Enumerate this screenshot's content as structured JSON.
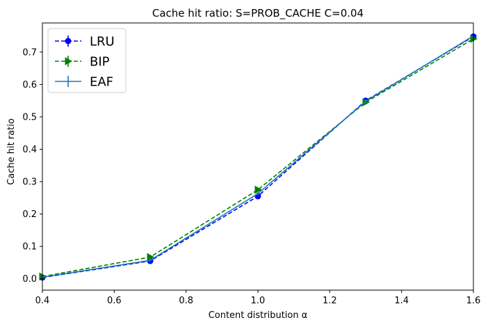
{
  "chart_data": {
    "type": "line",
    "title": "Cache hit ratio: S=PROB_CACHE C=0.04",
    "xlabel": "Content distribution α",
    "ylabel": "Cache hit ratio",
    "xlim": [
      0.4,
      1.6
    ],
    "ylim": [
      -0.035,
      0.79
    ],
    "x": [
      0.4,
      0.7,
      1.0,
      1.3,
      1.6
    ],
    "xticks": [
      0.4,
      0.6,
      0.8,
      1.0,
      1.2,
      1.4,
      1.6
    ],
    "xtick_labels": [
      "0.4",
      "0.6",
      "0.8",
      "1.0",
      "1.2",
      "1.4",
      "1.6"
    ],
    "yticks": [
      0.0,
      0.1,
      0.2,
      0.3,
      0.4,
      0.5,
      0.6,
      0.7
    ],
    "ytick_labels": [
      "0.0",
      "0.1",
      "0.2",
      "0.3",
      "0.4",
      "0.5",
      "0.6",
      "0.7"
    ],
    "grid": false,
    "legend_position": "top-left",
    "series": [
      {
        "name": "LRU",
        "values": [
          0.004,
          0.055,
          0.255,
          0.55,
          0.748
        ],
        "color": "#0000ff",
        "linestyle": "dashed",
        "marker": "circle"
      },
      {
        "name": "BIP",
        "values": [
          0.007,
          0.067,
          0.275,
          0.545,
          0.741
        ],
        "color": "#008000",
        "linestyle": "dashed",
        "marker": "triangle-right"
      },
      {
        "name": "EAF",
        "values": [
          0.005,
          0.057,
          0.263,
          0.548,
          0.75
        ],
        "color": "#1f77b4",
        "linestyle": "solid",
        "marker": "none"
      }
    ]
  }
}
